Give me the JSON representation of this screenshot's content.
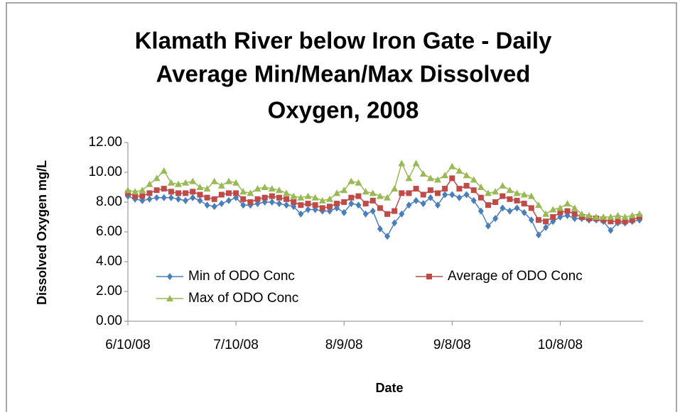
{
  "chart_data": {
    "type": "line",
    "title": [
      "Klamath River below Iron Gate - Daily",
      "Average Min/Mean/Max Dissolved",
      "Oxygen, 2008"
    ],
    "x_label": "Date",
    "y_label": "Dissolved Oxygen mg/L",
    "legend": "lower-left",
    "grid": false,
    "x": [
      "6/10/08",
      "6/12/08",
      "6/14/08",
      "6/16/08",
      "6/18/08",
      "6/20/08",
      "6/22/08",
      "6/24/08",
      "6/26/08",
      "6/28/08",
      "6/30/08",
      "7/2/08",
      "7/4/08",
      "7/6/08",
      "7/8/08",
      "7/10/08",
      "7/12/08",
      "7/14/08",
      "7/16/08",
      "7/18/08",
      "7/20/08",
      "7/22/08",
      "7/24/08",
      "7/26/08",
      "7/28/08",
      "7/30/08",
      "8/1/08",
      "8/3/08",
      "8/5/08",
      "8/7/08",
      "8/9/08",
      "8/11/08",
      "8/13/08",
      "8/15/08",
      "8/17/08",
      "8/19/08",
      "8/21/08",
      "8/23/08",
      "8/25/08",
      "8/27/08",
      "8/29/08",
      "8/31/08",
      "9/2/08",
      "9/4/08",
      "9/6/08",
      "9/8/08",
      "9/10/08",
      "9/12/08",
      "9/14/08",
      "9/16/08",
      "9/18/08",
      "9/20/08",
      "9/22/08",
      "9/24/08",
      "9/26/08",
      "9/28/08",
      "9/30/08",
      "10/2/08",
      "10/4/08",
      "10/6/08",
      "10/8/08",
      "10/10/08",
      "10/12/08",
      "10/14/08",
      "10/16/08",
      "10/18/08",
      "10/20/08",
      "10/22/08",
      "10/24/08",
      "10/26/08",
      "10/28/08",
      "10/30/08"
    ],
    "series": [
      {
        "name": "Min of ODO Conc",
        "color": "#4a7ebb",
        "marker": "diamond",
        "values": [
          8.4,
          8.2,
          8.1,
          8.2,
          8.3,
          8.3,
          8.3,
          8.2,
          8.1,
          8.3,
          8.1,
          7.8,
          7.7,
          7.9,
          8.1,
          8.3,
          7.8,
          7.8,
          7.9,
          8.0,
          8.0,
          7.9,
          7.8,
          7.7,
          7.2,
          7.5,
          7.5,
          7.4,
          7.4,
          7.6,
          7.3,
          7.9,
          7.8,
          7.2,
          7.4,
          6.2,
          5.7,
          6.6,
          7.2,
          7.8,
          8.1,
          7.9,
          8.3,
          7.8,
          8.5,
          8.5,
          8.3,
          8.5,
          8.1,
          7.4,
          6.4,
          6.9,
          7.6,
          7.4,
          7.6,
          7.3,
          6.8,
          5.8,
          6.3,
          6.7,
          7.0,
          7.1,
          6.9,
          6.9,
          6.8,
          6.8,
          6.7,
          6.1,
          6.6,
          6.6,
          6.7,
          6.8
        ]
      },
      {
        "name": "Average of ODO Conc",
        "color": "#be4b48",
        "marker": "square",
        "values": [
          8.6,
          8.4,
          8.4,
          8.6,
          8.8,
          8.9,
          8.7,
          8.6,
          8.6,
          8.7,
          8.5,
          8.3,
          8.2,
          8.5,
          8.6,
          8.6,
          8.2,
          8.0,
          8.2,
          8.3,
          8.4,
          8.3,
          8.2,
          8.0,
          7.8,
          7.9,
          7.8,
          7.6,
          7.7,
          7.9,
          8.0,
          8.3,
          8.4,
          7.9,
          8.1,
          7.6,
          7.2,
          7.4,
          8.6,
          8.6,
          8.9,
          8.5,
          8.8,
          8.6,
          8.9,
          9.6,
          8.9,
          9.1,
          8.8,
          8.3,
          7.8,
          8.0,
          8.4,
          8.2,
          8.1,
          7.9,
          7.6,
          6.8,
          6.7,
          7.0,
          7.3,
          7.4,
          7.2,
          7.0,
          6.9,
          6.9,
          6.8,
          6.7,
          6.7,
          6.7,
          6.8,
          7.0
        ]
      },
      {
        "name": "Max of ODO Conc",
        "color": "#98b954",
        "marker": "triangle",
        "values": [
          8.8,
          8.7,
          8.8,
          9.2,
          9.6,
          10.1,
          9.3,
          9.2,
          9.3,
          9.4,
          9.0,
          8.9,
          9.4,
          9.1,
          9.4,
          9.3,
          8.7,
          8.6,
          8.9,
          9.0,
          8.9,
          8.8,
          8.6,
          8.4,
          8.3,
          8.4,
          8.3,
          8.1,
          8.2,
          8.6,
          8.8,
          9.4,
          9.3,
          8.7,
          8.6,
          8.4,
          8.3,
          8.9,
          10.6,
          9.6,
          10.6,
          9.9,
          9.6,
          9.5,
          9.8,
          10.4,
          10.1,
          9.8,
          9.5,
          9.0,
          8.6,
          8.7,
          9.1,
          8.8,
          8.6,
          8.5,
          8.4,
          7.8,
          7.2,
          7.5,
          7.6,
          7.9,
          7.6,
          7.2,
          7.1,
          7.0,
          7.0,
          7.0,
          7.1,
          7.0,
          7.1,
          7.2
        ]
      }
    ],
    "xlim": [
      "6/10/08",
      "10/31/08"
    ],
    "xticks": [
      "6/10/08",
      "7/10/08",
      "8/9/08",
      "9/8/08",
      "10/8/08"
    ],
    "ylim": [
      0,
      12
    ],
    "yticks": [
      {
        "value": 0,
        "label": "0.00"
      },
      {
        "value": 2,
        "label": "2.00"
      },
      {
        "value": 4,
        "label": "4.00"
      },
      {
        "value": 6,
        "label": "6.00"
      },
      {
        "value": 8,
        "label": "8.00"
      },
      {
        "value": 10,
        "label": "10.00"
      },
      {
        "value": 12,
        "label": "12.00"
      }
    ]
  }
}
